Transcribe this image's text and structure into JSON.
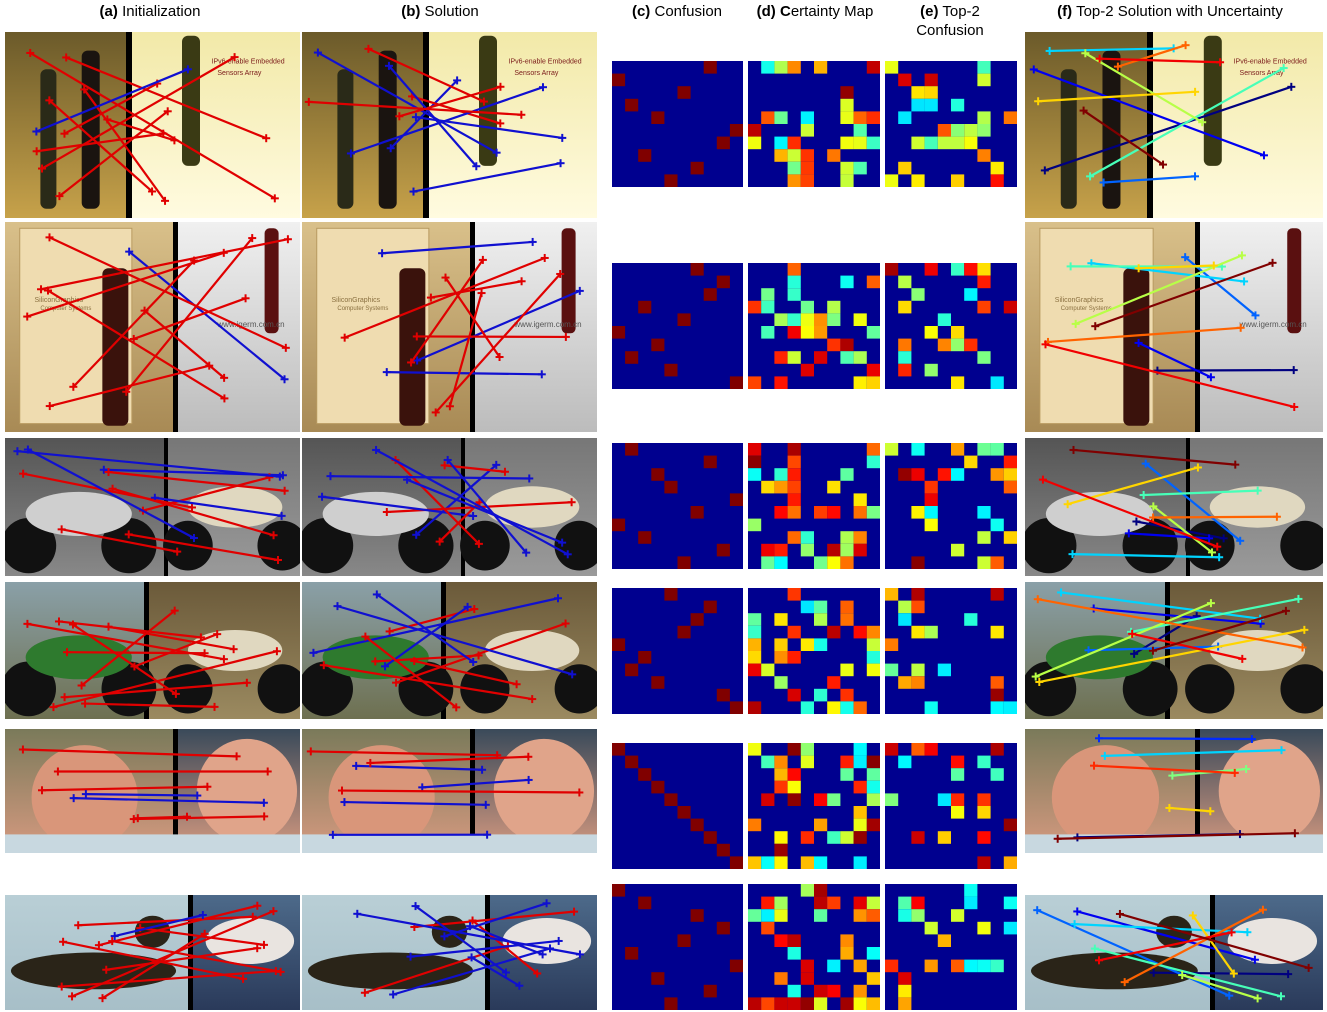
{
  "headers": {
    "a": {
      "prefix": "(a)",
      "label": "Initialization"
    },
    "b": {
      "prefix": "(b)",
      "label": "Solution"
    },
    "c": {
      "prefix": "(c)",
      "label": "Confusion"
    },
    "d": {
      "prefix": "(d)",
      "initial": "C",
      "label": "ertainty Map"
    },
    "e": {
      "prefix": "(e)",
      "label": "Top-2",
      "label2": "Confusion"
    },
    "f": {
      "prefix": "(f)",
      "label": "Top-2 Solution with Uncertainty"
    }
  },
  "image_texts": {
    "wine_caption_line1": "IPv6-enable Embedded",
    "wine_caption_line2": "Sensors Array",
    "box_text_line1": "SiliconGraphics",
    "box_text_line2": "Computer Systems",
    "watermark": "www.igerm.com.cn"
  },
  "colors": {
    "matrix_bg": "#00008f",
    "match_red": "#e00000",
    "match_blue": "#1010d0"
  }
}
